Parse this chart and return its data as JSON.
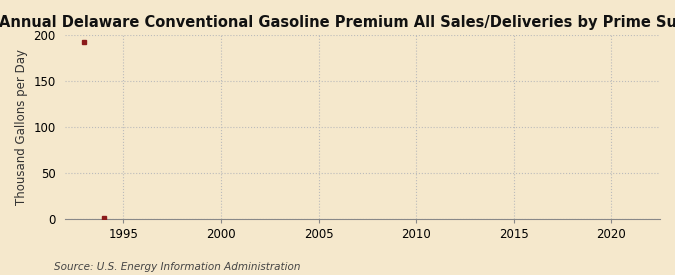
{
  "title": "Annual Delaware Conventional Gasoline Premium All Sales/Deliveries by Prime Supplier",
  "ylabel": "Thousand Gallons per Day",
  "source_text": "Source: U.S. Energy Information Administration",
  "background_color": "#f5e8cc",
  "plot_background_color": "#f5e8cc",
  "data_x": [
    1993,
    1994
  ],
  "data_y": [
    193.0,
    1.0
  ],
  "data_color": "#8b1a1a",
  "xlim": [
    1992.0,
    2022.5
  ],
  "ylim": [
    0,
    200
  ],
  "xticks": [
    1995,
    2000,
    2005,
    2010,
    2015,
    2020
  ],
  "yticks": [
    0,
    50,
    100,
    150,
    200
  ],
  "grid_color": "#bbbbbb",
  "grid_linestyle": ":",
  "title_fontsize": 10.5,
  "axis_label_fontsize": 8.5,
  "tick_fontsize": 8.5,
  "source_fontsize": 7.5,
  "marker": "s",
  "markersize": 3.5
}
